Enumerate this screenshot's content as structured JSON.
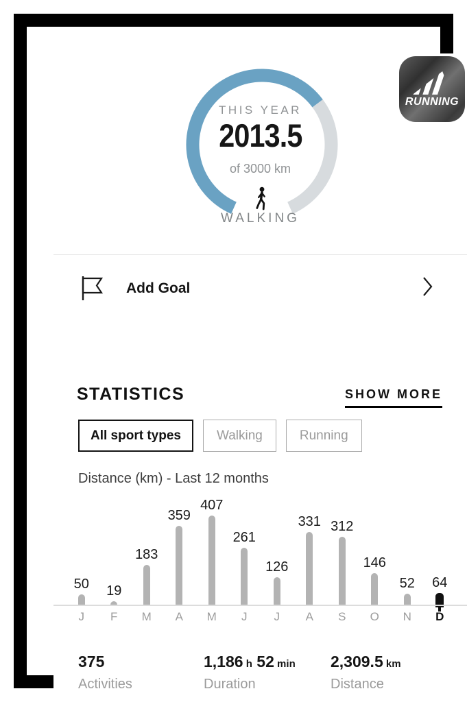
{
  "app_badge": {
    "label": "RUNNING"
  },
  "goal_ring": {
    "period_label": "THIS YEAR",
    "current_value": "2013.5",
    "current_numeric": 2013.5,
    "target_numeric": 3000,
    "target_label": "of 3000 km",
    "activity_label": "WALKING",
    "progress_color": "#6aa2c3",
    "track_color": "#d7dbde"
  },
  "add_goal": {
    "label": "Add Goal"
  },
  "statistics": {
    "title": "STATISTICS",
    "show_more_label": "SHOW MORE",
    "filters": [
      {
        "label": "All sport types",
        "active": true
      },
      {
        "label": "Walking",
        "active": false
      },
      {
        "label": "Running",
        "active": false
      }
    ]
  },
  "chart_data": {
    "type": "bar",
    "title": "Distance (km) - Last 12 months",
    "categories": [
      "J",
      "F",
      "M",
      "A",
      "M",
      "J",
      "J",
      "A",
      "S",
      "O",
      "N",
      "D"
    ],
    "values": [
      50,
      19,
      183,
      359,
      407,
      261,
      126,
      331,
      312,
      146,
      52,
      64
    ],
    "highlight_index": 11,
    "bar_color": "#b3b3b3",
    "highlight_color": "#111111",
    "xlabel": "",
    "ylabel": "Distance (km)",
    "ylim": [
      0,
      430
    ],
    "grid": false,
    "legend": "none",
    "value_labels": true
  },
  "summary": [
    {
      "parts": [
        {
          "t": "375",
          "big": true
        }
      ],
      "label": "Activities"
    },
    {
      "parts": [
        {
          "t": "1,186",
          "big": true
        },
        {
          "t": "h",
          "big": false
        },
        {
          "t": "52",
          "big": true
        },
        {
          "t": "min",
          "big": false
        }
      ],
      "label": "Duration"
    },
    {
      "parts": [
        {
          "t": "2,309.5",
          "big": true
        },
        {
          "t": "km",
          "big": false
        }
      ],
      "label": "Distance"
    }
  ]
}
